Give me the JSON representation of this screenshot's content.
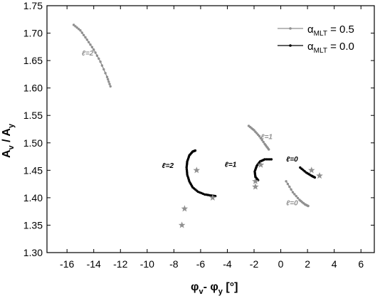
{
  "chart_data": {
    "type": "scatter",
    "xlim": [
      -17.5,
      7
    ],
    "ylim": [
      1.3,
      1.75
    ],
    "x_ticks": [
      -16,
      -14,
      -12,
      -10,
      -8,
      -6,
      -4,
      -2,
      0,
      2,
      4,
      6
    ],
    "y_ticks": [
      1.3,
      1.35,
      1.4,
      1.45,
      1.5,
      1.55,
      1.6,
      1.65,
      1.7,
      1.75
    ],
    "x_tick_labels": [
      "-16",
      "-14",
      "-12",
      "-10",
      "-8",
      "-6",
      "-4",
      "-2",
      "0",
      "2",
      "4",
      "6"
    ],
    "y_tick_labels": [
      "1.30",
      "1.35",
      "1.40",
      "1.45",
      "1.50",
      "1.55",
      "1.60",
      "1.65",
      "1.70",
      "1.75"
    ],
    "xlabel": {
      "main": "φ",
      "sub1": "v",
      "mid": "- φ",
      "sub2": "y",
      "tail": " [°]"
    },
    "ylabel": {
      "main": "A",
      "sub1": "v",
      "mid": " / A",
      "sub2": "y"
    },
    "legend_position": "top-right",
    "colors": {
      "grey": "#909090",
      "black": "#000000"
    },
    "series": [
      {
        "name": "α_MLT = 0.5",
        "legend": {
          "greek": "α",
          "sub": "MLT",
          "tail": " = 0.5"
        },
        "color": "#909090",
        "curves": [
          {
            "label": "ℓ=2",
            "points": [
              [
                -15.5,
                1.715
              ],
              [
                -15.0,
                1.705
              ],
              [
                -14.5,
                1.688
              ],
              [
                -14.0,
                1.67
              ],
              [
                -13.5,
                1.648
              ],
              [
                -13.0,
                1.62
              ],
              [
                -12.75,
                1.603
              ]
            ]
          },
          {
            "label": "ℓ=1",
            "points": [
              [
                -2.4,
                1.531
              ],
              [
                -2.0,
                1.523
              ],
              [
                -1.6,
                1.512
              ],
              [
                -1.2,
                1.498
              ],
              [
                -0.9,
                1.488
              ]
            ]
          },
          {
            "label": "ℓ=0",
            "points": [
              [
                0.4,
                1.43
              ],
              [
                0.9,
                1.41
              ],
              [
                1.4,
                1.396
              ],
              [
                1.8,
                1.388
              ],
              [
                2.05,
                1.385
              ]
            ]
          }
        ]
      },
      {
        "name": "α_MLT = 0.0",
        "legend": {
          "greek": "α",
          "sub": "MLT",
          "tail": " = 0.0"
        },
        "color": "#000000",
        "curves": [
          {
            "label": "ℓ=2",
            "points": [
              [
                -6.4,
                1.486
              ],
              [
                -6.6,
                1.484
              ],
              [
                -6.85,
                1.477
              ],
              [
                -7.0,
                1.466
              ],
              [
                -7.05,
                1.455
              ],
              [
                -7.0,
                1.442
              ],
              [
                -6.85,
                1.43
              ],
              [
                -6.6,
                1.419
              ],
              [
                -6.2,
                1.411
              ],
              [
                -5.7,
                1.406
              ],
              [
                -5.2,
                1.404
              ],
              [
                -4.9,
                1.403
              ]
            ]
          },
          {
            "label": "ℓ=1",
            "points": [
              [
                -0.7,
                1.47
              ],
              [
                -1.2,
                1.47
              ],
              [
                -1.55,
                1.466
              ],
              [
                -1.8,
                1.458
              ],
              [
                -1.95,
                1.448
              ],
              [
                -1.9,
                1.438
              ],
              [
                -1.7,
                1.432
              ]
            ]
          },
          {
            "label": "ℓ=0",
            "points": [
              [
                1.45,
                1.455
              ],
              [
                1.9,
                1.446
              ],
              [
                2.3,
                1.44
              ],
              [
                2.55,
                1.437
              ]
            ]
          }
        ]
      }
    ],
    "observations": {
      "marker": "star",
      "color": "#909090",
      "points": [
        [
          -6.3,
          1.45
        ],
        [
          -5.1,
          1.4
        ],
        [
          -7.2,
          1.38
        ],
        [
          -7.4,
          1.35
        ],
        [
          -1.5,
          1.46
        ],
        [
          -1.9,
          1.43
        ],
        [
          -1.9,
          1.42
        ],
        [
          2.3,
          1.45
        ],
        [
          2.9,
          1.44
        ]
      ]
    },
    "annotations": [
      {
        "text": "ℓ=2",
        "x": -14.9,
        "y": 1.659,
        "color": "#909090"
      },
      {
        "text": "ℓ=1",
        "x": -1.5,
        "y": 1.507,
        "color": "#909090"
      },
      {
        "text": "ℓ=0",
        "x": 0.4,
        "y": 1.386,
        "color": "#909090"
      },
      {
        "text": "ℓ=2",
        "x": -8.9,
        "y": 1.454,
        "color": "#000000"
      },
      {
        "text": "ℓ=1",
        "x": -4.2,
        "y": 1.456,
        "color": "#000000"
      },
      {
        "text": "ℓ=0",
        "x": 0.4,
        "y": 1.466,
        "color": "#000000"
      }
    ]
  }
}
